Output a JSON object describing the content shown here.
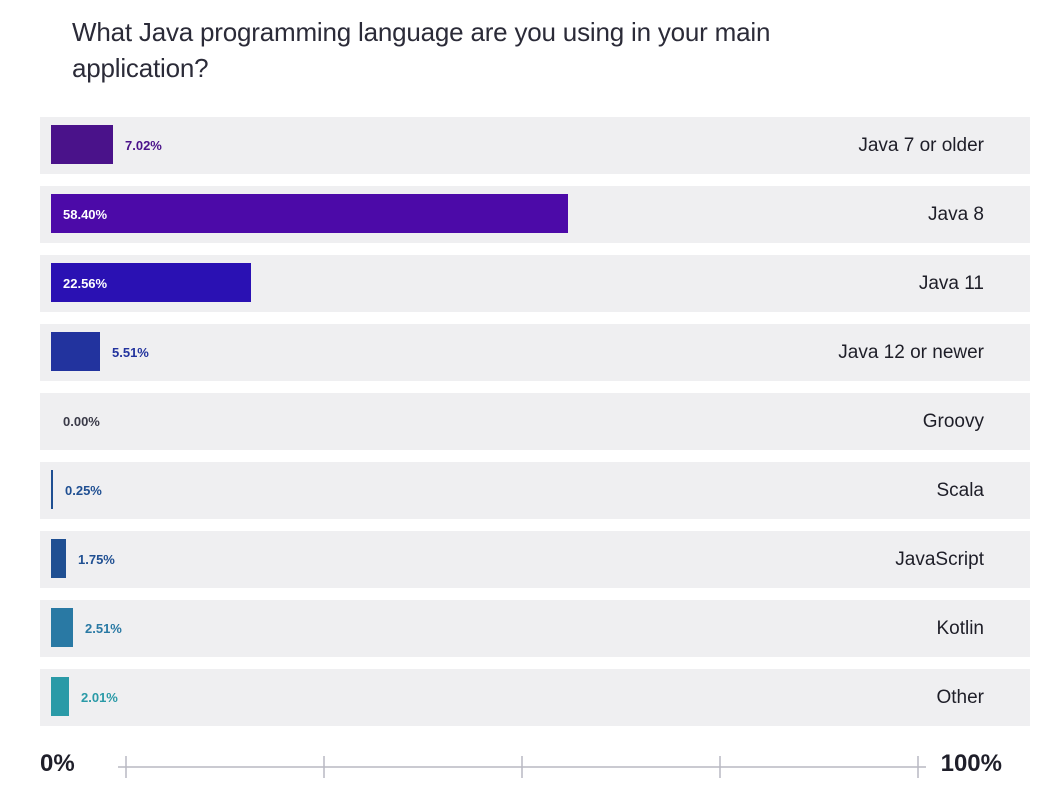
{
  "chart_data": {
    "type": "bar",
    "orientation": "horizontal",
    "title": "What Java programming language are you using in your main application?",
    "categories": [
      "Java 7 or older",
      "Java 8",
      "Java 11",
      "Java 12 or newer",
      "Groovy",
      "Scala",
      "JavaScript",
      "Kotlin",
      "Other"
    ],
    "values": [
      7.02,
      58.4,
      22.56,
      5.51,
      0.0,
      0.25,
      1.75,
      2.51,
      2.01
    ],
    "value_labels": [
      "7.02%",
      "58.40%",
      "22.56%",
      "5.51%",
      "0.00%",
      "0.25%",
      "1.75%",
      "2.51%",
      "2.01%"
    ],
    "colors": [
      "#4a128a",
      "#4c0aa8",
      "#2a11b3",
      "#22339e",
      "#1d3c96",
      "#1f4f92",
      "#1f4f92",
      "#2979a4",
      "#2a9aa7"
    ],
    "xlim": [
      0,
      100
    ],
    "axis_labels": {
      "start": "0%",
      "end": "100%"
    },
    "grid": false,
    "legend": "none"
  }
}
